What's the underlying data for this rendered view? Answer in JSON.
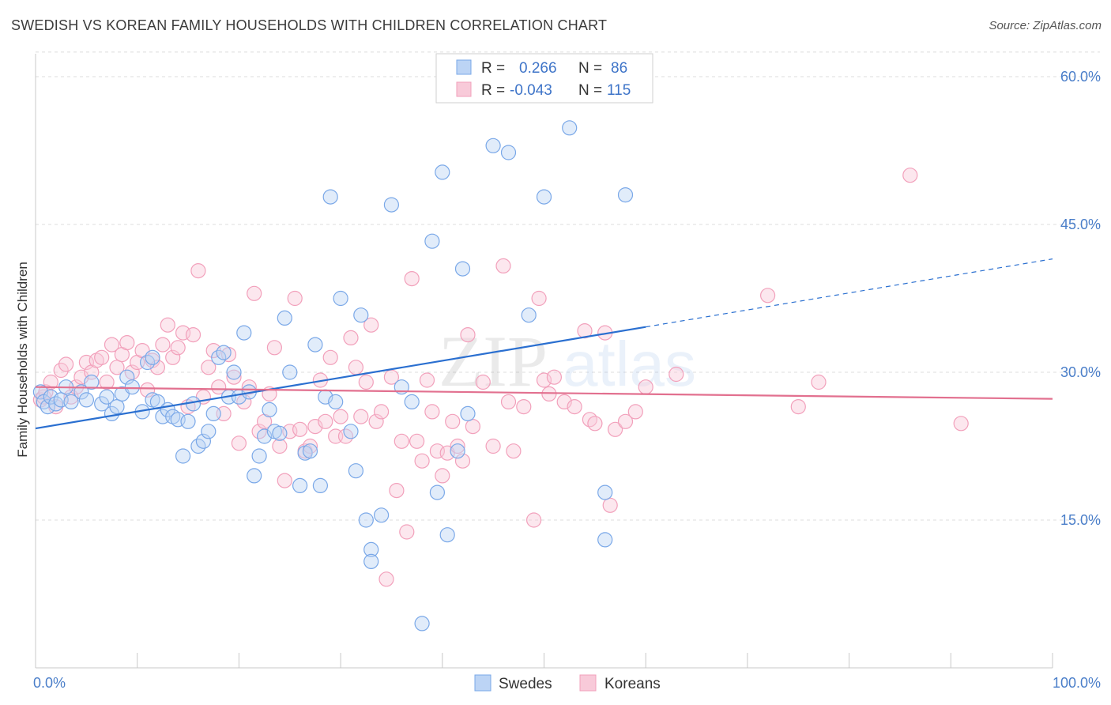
{
  "title": "SWEDISH VS KOREAN FAMILY HOUSEHOLDS WITH CHILDREN CORRELATION CHART",
  "source": "Source: ZipAtlas.com",
  "watermark": {
    "zip": "ZIP",
    "atlas": "atlas"
  },
  "legend_box": {
    "rows": [
      {
        "r_label": "R =",
        "r_value": "0.266",
        "n_label": "N =",
        "n_value": "86",
        "color": "#7aa8e8"
      },
      {
        "r_label": "R =",
        "r_value": "-0.043",
        "n_label": "N =",
        "n_value": "115",
        "color": "#f2a0bb"
      }
    ]
  },
  "chart_data": {
    "type": "scatter",
    "title": "SWEDISH VS KOREAN FAMILY HOUSEHOLDS WITH CHILDREN CORRELATION CHART",
    "xlabel": "",
    "ylabel": "Family Households with Children",
    "xlim": [
      0,
      100
    ],
    "ylim": [
      0,
      62
    ],
    "x_tick_labels": [
      "0.0%",
      "100.0%"
    ],
    "y_ticks": [
      15,
      30,
      45,
      60
    ],
    "y_tick_labels": [
      "15.0%",
      "30.0%",
      "45.0%",
      "60.0%"
    ],
    "grid": true,
    "legend_position": "bottom",
    "series": [
      {
        "name": "Swedes",
        "color": "#7aa8e8",
        "line_color": "#2a6fd0",
        "trend": {
          "x": [
            0,
            60
          ],
          "y": [
            24.3,
            34.6
          ],
          "dashed_to": [
            100,
            41.5
          ]
        },
        "points": [
          [
            0.5,
            28
          ],
          [
            0.8,
            27
          ],
          [
            1.2,
            26.5
          ],
          [
            1.5,
            27.5
          ],
          [
            2.0,
            26.8
          ],
          [
            2.5,
            27.2
          ],
          [
            3.0,
            28.5
          ],
          [
            3.5,
            27
          ],
          [
            4.5,
            28
          ],
          [
            5.0,
            27.2
          ],
          [
            5.5,
            29
          ],
          [
            6.5,
            26.8
          ],
          [
            7.0,
            27.5
          ],
          [
            7.5,
            25.8
          ],
          [
            8.0,
            26.5
          ],
          [
            8.5,
            27.8
          ],
          [
            9.0,
            29.5
          ],
          [
            9.5,
            28.5
          ],
          [
            10.5,
            26
          ],
          [
            11.0,
            31
          ],
          [
            11.5,
            31.5
          ],
          [
            11.5,
            27.2
          ],
          [
            12.0,
            27
          ],
          [
            12.5,
            25.5
          ],
          [
            13.0,
            26.2
          ],
          [
            13.5,
            25.5
          ],
          [
            14.0,
            25.2
          ],
          [
            14.5,
            21.5
          ],
          [
            15.0,
            25
          ],
          [
            15.5,
            26.8
          ],
          [
            16.0,
            22.5
          ],
          [
            16.5,
            23
          ],
          [
            17.0,
            24
          ],
          [
            17.5,
            25.8
          ],
          [
            18.0,
            31.5
          ],
          [
            18.5,
            32
          ],
          [
            19.0,
            27.5
          ],
          [
            19.5,
            30
          ],
          [
            20.0,
            27.5
          ],
          [
            20.5,
            34
          ],
          [
            21.0,
            28
          ],
          [
            21.5,
            19.5
          ],
          [
            22.0,
            21.5
          ],
          [
            22.5,
            23.5
          ],
          [
            23.0,
            26.2
          ],
          [
            23.5,
            24
          ],
          [
            24.0,
            23.8
          ],
          [
            24.5,
            35.5
          ],
          [
            25.0,
            30
          ],
          [
            26.0,
            18.5
          ],
          [
            26.5,
            21.8
          ],
          [
            27.0,
            22
          ],
          [
            27.5,
            32.8
          ],
          [
            28.0,
            18.5
          ],
          [
            28.5,
            27.5
          ],
          [
            29.0,
            47.8
          ],
          [
            29.5,
            27
          ],
          [
            30.0,
            37.5
          ],
          [
            31.0,
            24
          ],
          [
            31.5,
            20
          ],
          [
            32.0,
            35.8
          ],
          [
            32.5,
            15
          ],
          [
            33.0,
            12
          ],
          [
            33.0,
            10.8
          ],
          [
            34.0,
            15.5
          ],
          [
            35.0,
            47
          ],
          [
            36.0,
            28.5
          ],
          [
            37.0,
            27
          ],
          [
            38.0,
            4.5
          ],
          [
            39.0,
            43.3
          ],
          [
            39.5,
            17.8
          ],
          [
            40.0,
            50.3
          ],
          [
            40.5,
            13.5
          ],
          [
            41.5,
            22
          ],
          [
            42.0,
            40.5
          ],
          [
            42.5,
            25.8
          ],
          [
            43.0,
            60
          ],
          [
            45.0,
            53
          ],
          [
            46.5,
            52.3
          ],
          [
            48.5,
            35.8
          ],
          [
            50.0,
            47.8
          ],
          [
            52.5,
            54.8
          ],
          [
            56.0,
            17.8
          ],
          [
            56.0,
            13
          ],
          [
            58.0,
            48
          ]
        ]
      },
      {
        "name": "Koreans",
        "color": "#f2a0bb",
        "line_color": "#e2708f",
        "trend": {
          "x": [
            0,
            100
          ],
          "y": [
            28.5,
            27.3
          ]
        },
        "points": [
          [
            0.5,
            27.2
          ],
          [
            0.8,
            27.5
          ],
          [
            1.0,
            28
          ],
          [
            1.5,
            29
          ],
          [
            2.0,
            26.5
          ],
          [
            2.5,
            30.2
          ],
          [
            3.0,
            30.8
          ],
          [
            3.5,
            27.5
          ],
          [
            4.0,
            28.5
          ],
          [
            4.5,
            29.5
          ],
          [
            5.0,
            31
          ],
          [
            5.5,
            30
          ],
          [
            6.0,
            31.2
          ],
          [
            6.5,
            31.5
          ],
          [
            7.0,
            29
          ],
          [
            7.5,
            32.8
          ],
          [
            8.0,
            30.5
          ],
          [
            8.5,
            31.8
          ],
          [
            9.0,
            33
          ],
          [
            9.5,
            30
          ],
          [
            10.0,
            31
          ],
          [
            10.5,
            32.2
          ],
          [
            11.0,
            28.2
          ],
          [
            11.5,
            31.2
          ],
          [
            12.0,
            30.5
          ],
          [
            12.5,
            32.8
          ],
          [
            13.0,
            34.8
          ],
          [
            13.5,
            31.5
          ],
          [
            14.0,
            32.5
          ],
          [
            14.5,
            34
          ],
          [
            15.0,
            26.5
          ],
          [
            15.5,
            33.8
          ],
          [
            16.0,
            40.3
          ],
          [
            16.5,
            27.5
          ],
          [
            17.0,
            30.5
          ],
          [
            17.5,
            32.2
          ],
          [
            18.0,
            28.5
          ],
          [
            18.5,
            25.8
          ],
          [
            19.0,
            31.8
          ],
          [
            19.5,
            29.5
          ],
          [
            20.0,
            22.8
          ],
          [
            20.5,
            27
          ],
          [
            21.0,
            28.5
          ],
          [
            21.5,
            38
          ],
          [
            22.0,
            24
          ],
          [
            22.5,
            25
          ],
          [
            23.0,
            27.8
          ],
          [
            23.5,
            32.5
          ],
          [
            24.0,
            22.5
          ],
          [
            24.5,
            19
          ],
          [
            25.0,
            24
          ],
          [
            25.5,
            37.5
          ],
          [
            26.0,
            24.2
          ],
          [
            26.5,
            22
          ],
          [
            27.0,
            22.5
          ],
          [
            27.5,
            24.5
          ],
          [
            28.0,
            29.2
          ],
          [
            28.5,
            25
          ],
          [
            29.0,
            31.5
          ],
          [
            29.5,
            23.5
          ],
          [
            30.0,
            25.5
          ],
          [
            30.5,
            23.5
          ],
          [
            31.0,
            33.5
          ],
          [
            31.5,
            30.5
          ],
          [
            32.0,
            25.5
          ],
          [
            32.5,
            29
          ],
          [
            33.0,
            34.8
          ],
          [
            33.5,
            25
          ],
          [
            34.0,
            26
          ],
          [
            34.5,
            9
          ],
          [
            35.0,
            29.5
          ],
          [
            35.5,
            18
          ],
          [
            36.0,
            23
          ],
          [
            36.5,
            13.8
          ],
          [
            37.0,
            39.5
          ],
          [
            37.5,
            23
          ],
          [
            38.0,
            21
          ],
          [
            38.5,
            29.2
          ],
          [
            39.0,
            26
          ],
          [
            39.5,
            22
          ],
          [
            40.0,
            19.5
          ],
          [
            40.5,
            21.8
          ],
          [
            41.0,
            25
          ],
          [
            41.5,
            22.5
          ],
          [
            42.0,
            21
          ],
          [
            42.5,
            33.8
          ],
          [
            43.0,
            24.5
          ],
          [
            44.0,
            29
          ],
          [
            45.0,
            22.5
          ],
          [
            46.0,
            40.8
          ],
          [
            46.5,
            27
          ],
          [
            47.0,
            22
          ],
          [
            48.0,
            26.5
          ],
          [
            49.0,
            15
          ],
          [
            49.5,
            37.5
          ],
          [
            50.0,
            29.2
          ],
          [
            50.5,
            27.8
          ],
          [
            51.0,
            29.5
          ],
          [
            52.0,
            27
          ],
          [
            53.0,
            26.5
          ],
          [
            54.0,
            34.2
          ],
          [
            54.5,
            25.2
          ],
          [
            55.0,
            24.8
          ],
          [
            56.0,
            34
          ],
          [
            56.5,
            16.5
          ],
          [
            57.0,
            24.2
          ],
          [
            58.0,
            25
          ],
          [
            59.0,
            26
          ],
          [
            60.0,
            28.5
          ],
          [
            63.0,
            29.8
          ],
          [
            72.0,
            37.8
          ],
          [
            75.0,
            26.5
          ],
          [
            77.0,
            29
          ],
          [
            86.0,
            50
          ],
          [
            91.0,
            24.8
          ]
        ]
      }
    ]
  }
}
